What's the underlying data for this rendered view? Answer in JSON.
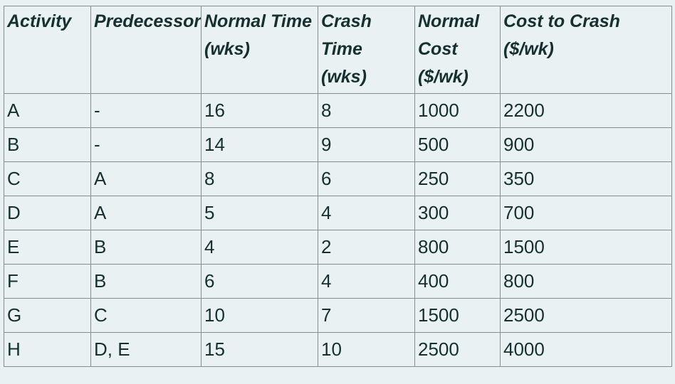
{
  "page": {
    "background": "#e9f1f3",
    "text_color": "#15302f",
    "border_color": "#848e90"
  },
  "table": {
    "name": "activity-crash-cost-table",
    "columns": [
      {
        "key": "activity",
        "label": "Activity"
      },
      {
        "key": "predecessor",
        "label": "Predecessor"
      },
      {
        "key": "normal_time",
        "label": "Normal Time\n(wks)"
      },
      {
        "key": "crash_time",
        "label": "Crash Time\n(wks)"
      },
      {
        "key": "normal_cost",
        "label": "Normal\nCost\n($/wk)"
      },
      {
        "key": "cost_to_crash",
        "label": "Cost to Crash\n($/wk)"
      }
    ],
    "rows": [
      {
        "activity": "A",
        "predecessor": "-",
        "normal_time": "16",
        "crash_time": "8",
        "normal_cost": "1000",
        "cost_to_crash": "2200"
      },
      {
        "activity": "B",
        "predecessor": "-",
        "normal_time": "14",
        "crash_time": "9",
        "normal_cost": "500",
        "cost_to_crash": "900"
      },
      {
        "activity": "C",
        "predecessor": "A",
        "normal_time": "8",
        "crash_time": "6",
        "normal_cost": "250",
        "cost_to_crash": "350"
      },
      {
        "activity": "D",
        "predecessor": "A",
        "normal_time": "5",
        "crash_time": "4",
        "normal_cost": "300",
        "cost_to_crash": "700"
      },
      {
        "activity": "E",
        "predecessor": "B",
        "normal_time": "4",
        "crash_time": "2",
        "normal_cost": "800",
        "cost_to_crash": "1500"
      },
      {
        "activity": "F",
        "predecessor": "B",
        "normal_time": "6",
        "crash_time": "4",
        "normal_cost": "400",
        "cost_to_crash": "800"
      },
      {
        "activity": "G",
        "predecessor": "C",
        "normal_time": "10",
        "crash_time": "7",
        "normal_cost": "1500",
        "cost_to_crash": "2500"
      },
      {
        "activity": "H",
        "predecessor": "D, E",
        "normal_time": "15",
        "crash_time": "10",
        "normal_cost": "2500",
        "cost_to_crash": "4000"
      }
    ]
  }
}
